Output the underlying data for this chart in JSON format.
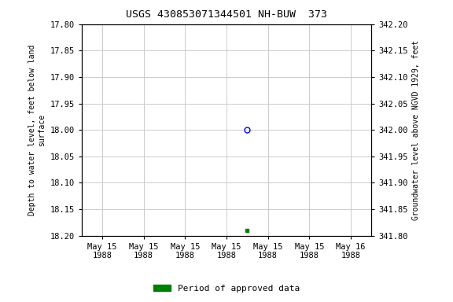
{
  "title": "USGS 430853071344501 NH-BUW  373",
  "title_fontsize": 9.5,
  "ylabel_left": "Depth to water level, feet below land\nsurface",
  "ylabel_right": "Groundwater level above NGVD 1929, feet",
  "ylim_left_top": 17.8,
  "ylim_left_bottom": 18.2,
  "ylim_right_top": 342.2,
  "ylim_right_bottom": 341.8,
  "yticks_left": [
    17.8,
    17.85,
    17.9,
    17.95,
    18.0,
    18.05,
    18.1,
    18.15,
    18.2
  ],
  "yticks_right": [
    342.2,
    342.15,
    342.1,
    342.05,
    342.0,
    341.95,
    341.9,
    341.85,
    341.8
  ],
  "point_open_x": 3.5,
  "point_open_y": 18.0,
  "point_filled_x": 3.5,
  "point_filled_y": 18.19,
  "open_marker_color": "blue",
  "filled_marker_color": "green",
  "background_color": "white",
  "grid_color": "#cccccc",
  "xtick_labels": [
    "May 15\n1988",
    "May 15\n1988",
    "May 15\n1988",
    "May 15\n1988",
    "May 15\n1988",
    "May 15\n1988",
    "May 16\n1988"
  ],
  "xtick_positions": [
    0,
    1,
    2,
    3,
    4,
    5,
    6
  ],
  "legend_label": "Period of approved data",
  "legend_color": "green"
}
